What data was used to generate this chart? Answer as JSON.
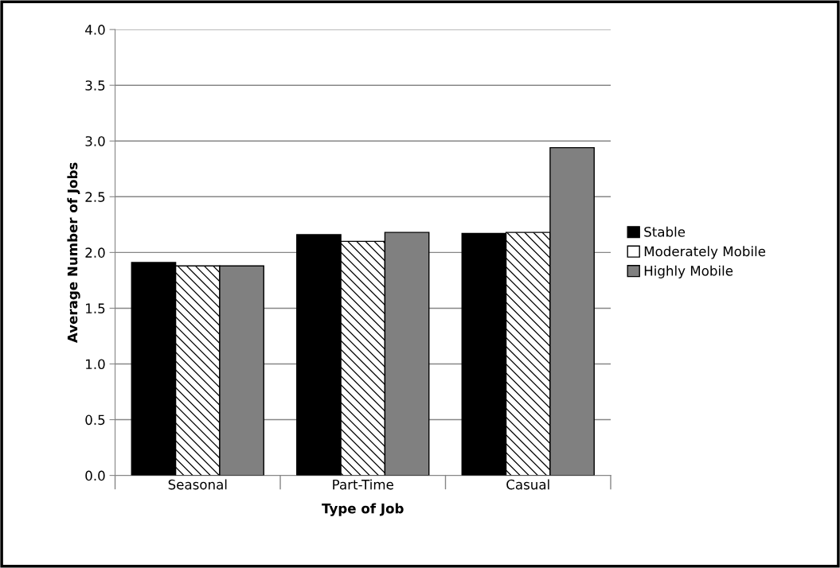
{
  "chart_data": {
    "type": "bar",
    "xlabel": "Type of Job",
    "ylabel": "Average Number of Jobs",
    "categories": [
      "Seasonal",
      "Part-Time",
      "Casual"
    ],
    "series": [
      {
        "name": "Stable",
        "color": "#000000",
        "values": [
          1.91,
          2.16,
          2.17
        ]
      },
      {
        "name": "Moderately Mobile",
        "color": "#ffffff",
        "values": [
          1.88,
          2.1,
          2.18
        ]
      },
      {
        "name": "Highly Mobile",
        "color": "#808080",
        "values": [
          1.88,
          2.18,
          2.94
        ]
      }
    ],
    "ylim": [
      0,
      4
    ],
    "yticks": [
      {
        "value": 0,
        "label": "0.0"
      },
      {
        "value": 0.5,
        "label": "0.5"
      },
      {
        "value": 1,
        "label": "1.0"
      },
      {
        "value": 1.5,
        "label": "1.5"
      },
      {
        "value": 2,
        "label": "2.0"
      },
      {
        "value": 2.5,
        "label": "2.5"
      },
      {
        "value": 3,
        "label": "3.0"
      },
      {
        "value": 3.5,
        "label": "3.5"
      },
      {
        "value": 4,
        "label": "4.0"
      }
    ],
    "grid": "y",
    "legend": "right"
  }
}
